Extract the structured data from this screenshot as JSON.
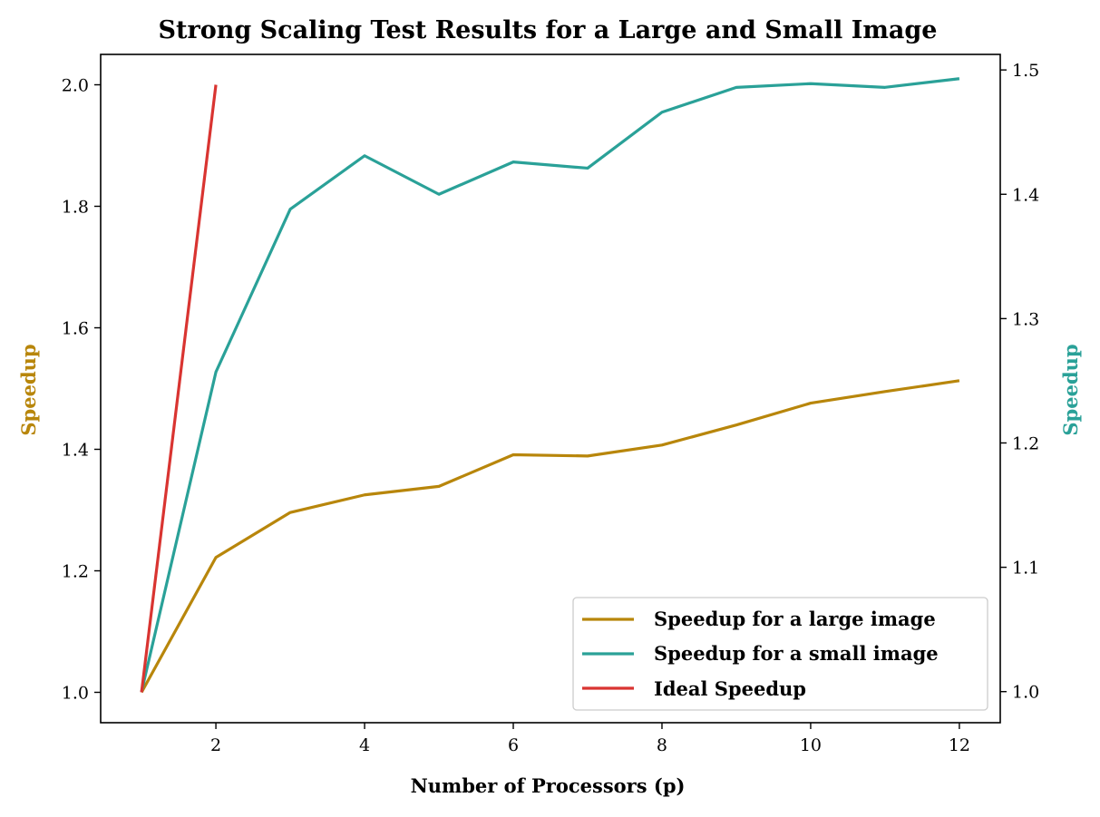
{
  "chart_data": {
    "type": "line",
    "title": "Strong Scaling Test Results for a Large and Small Image",
    "xlabel": "Number of Processors (p)",
    "ylabel_left": "Speedup",
    "ylabel_right": "Speedup",
    "xlim": [
      0.45,
      12.55
    ],
    "ylim_left": [
      0.95,
      2.05
    ],
    "ylim_right": [
      0.975,
      1.5125
    ],
    "x_ticks": [
      2,
      4,
      6,
      8,
      10,
      12
    ],
    "x_tick_labels": [
      "2",
      "4",
      "6",
      "8",
      "10",
      "12"
    ],
    "y_left_ticks": [
      1.0,
      1.2,
      1.4,
      1.6,
      1.8,
      2.0
    ],
    "y_left_tick_labels": [
      "1.0",
      "1.2",
      "1.4",
      "1.6",
      "1.8",
      "2.0"
    ],
    "y_right_ticks": [
      1.0,
      1.1,
      1.2,
      1.3,
      1.4,
      1.5
    ],
    "y_right_tick_labels": [
      "1.0",
      "1.1",
      "1.2",
      "1.3",
      "1.4",
      "1.5"
    ],
    "grid": false,
    "legend_position": "lower-right",
    "series": [
      {
        "name": "Speedup for a large image",
        "axis": "left",
        "color": "#b8860b",
        "x": [
          1,
          2,
          3,
          4,
          5,
          6,
          7,
          8,
          9,
          10,
          11,
          12
        ],
        "values": [
          1.0,
          1.222,
          1.296,
          1.325,
          1.339,
          1.391,
          1.389,
          1.407,
          1.44,
          1.476,
          1.495,
          1.513
        ]
      },
      {
        "name": "Speedup for a small image",
        "axis": "right",
        "color": "#2aa198",
        "x": [
          1,
          2,
          3,
          4,
          5,
          6,
          7,
          8,
          9,
          10,
          11,
          12
        ],
        "values": [
          1.0,
          1.257,
          1.388,
          1.431,
          1.4,
          1.426,
          1.421,
          1.466,
          1.486,
          1.489,
          1.486,
          1.493
        ]
      },
      {
        "name": "Ideal Speedup",
        "axis": "left",
        "color": "#d93431",
        "x": [
          1,
          2
        ],
        "values": [
          1.0,
          2.0
        ]
      }
    ]
  }
}
